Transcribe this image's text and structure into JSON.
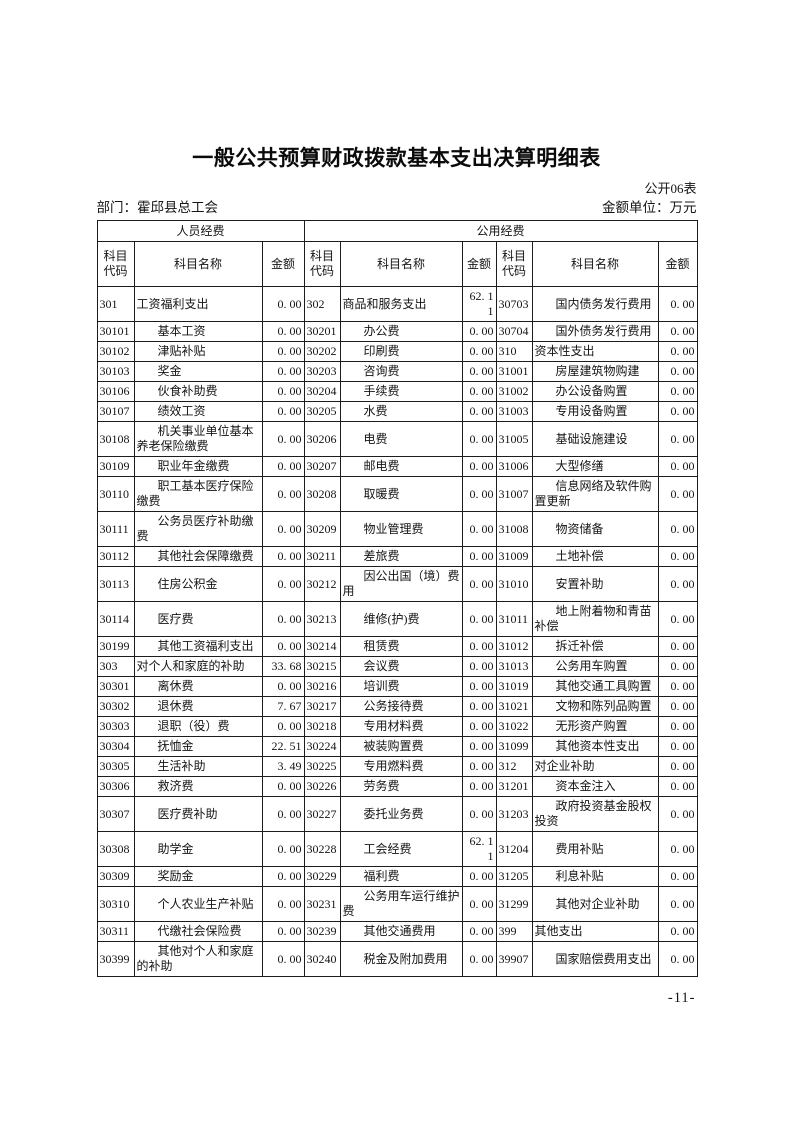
{
  "page": {
    "title": "一般公共预算财政拨款基本支出决算明细表",
    "form_label": "公开06表",
    "department_label": "部门：霍邱县总工会",
    "unit_label": "金额单位：万元",
    "page_number": "-11-"
  },
  "table": {
    "group_headers": [
      "人员经费",
      "公用经费"
    ],
    "column_headers": {
      "code": "科目代码",
      "name": "科目名称",
      "amount": "金额"
    },
    "rows": [
      [
        [
          "301",
          "工资福利支出",
          "0. 00"
        ],
        [
          "302",
          "商品和服务支出",
          "62. 11"
        ],
        [
          "30703",
          "国内债务发行费用",
          "0. 00"
        ]
      ],
      [
        [
          "30101",
          "基本工资",
          "0. 00"
        ],
        [
          "30201",
          "办公费",
          "0. 00"
        ],
        [
          "30704",
          "国外债务发行费用",
          "0. 00"
        ]
      ],
      [
        [
          "30102",
          "津贴补贴",
          "0. 00"
        ],
        [
          "30202",
          "印刷费",
          "0. 00"
        ],
        [
          "310",
          "资本性支出",
          "0. 00"
        ]
      ],
      [
        [
          "30103",
          "奖金",
          "0. 00"
        ],
        [
          "30203",
          "咨询费",
          "0. 00"
        ],
        [
          "31001",
          "房屋建筑物购建",
          "0. 00"
        ]
      ],
      [
        [
          "30106",
          "伙食补助费",
          "0. 00"
        ],
        [
          "30204",
          "手续费",
          "0. 00"
        ],
        [
          "31002",
          "办公设备购置",
          "0. 00"
        ]
      ],
      [
        [
          "30107",
          "绩效工资",
          "0. 00"
        ],
        [
          "30205",
          "水费",
          "0. 00"
        ],
        [
          "31003",
          "专用设备购置",
          "0. 00"
        ]
      ],
      [
        [
          "30108",
          "机关事业单位基本养老保险缴费",
          "0. 00"
        ],
        [
          "30206",
          "电费",
          "0. 00"
        ],
        [
          "31005",
          "基础设施建设",
          "0. 00"
        ]
      ],
      [
        [
          "30109",
          "职业年金缴费",
          "0. 00"
        ],
        [
          "30207",
          "邮电费",
          "0. 00"
        ],
        [
          "31006",
          "大型修缮",
          "0. 00"
        ]
      ],
      [
        [
          "30110",
          "职工基本医疗保险缴费",
          "0. 00"
        ],
        [
          "30208",
          "取暖费",
          "0. 00"
        ],
        [
          "31007",
          "信息网络及软件购置更新",
          "0. 00"
        ]
      ],
      [
        [
          "30111",
          "公务员医疗补助缴费",
          "0. 00"
        ],
        [
          "30209",
          "物业管理费",
          "0. 00"
        ],
        [
          "31008",
          "物资储备",
          "0. 00"
        ]
      ],
      [
        [
          "30112",
          "其他社会保障缴费",
          "0. 00"
        ],
        [
          "30211",
          "差旅费",
          "0. 00"
        ],
        [
          "31009",
          "土地补偿",
          "0. 00"
        ]
      ],
      [
        [
          "30113",
          "住房公积金",
          "0. 00"
        ],
        [
          "30212",
          "因公出国（境）费用",
          "0. 00"
        ],
        [
          "31010",
          "安置补助",
          "0. 00"
        ]
      ],
      [
        [
          "30114",
          "医疗费",
          "0. 00"
        ],
        [
          "30213",
          "维修(护)费",
          "0. 00"
        ],
        [
          "31011",
          "地上附着物和青苗补偿",
          "0. 00"
        ]
      ],
      [
        [
          "30199",
          "其他工资福利支出",
          "0. 00"
        ],
        [
          "30214",
          "租赁费",
          "0. 00"
        ],
        [
          "31012",
          "拆迁补偿",
          "0. 00"
        ]
      ],
      [
        [
          "303",
          "对个人和家庭的补助",
          "33. 68"
        ],
        [
          "30215",
          "会议费",
          "0. 00"
        ],
        [
          "31013",
          "公务用车购置",
          "0. 00"
        ]
      ],
      [
        [
          "30301",
          "离休费",
          "0. 00"
        ],
        [
          "30216",
          "培训费",
          "0. 00"
        ],
        [
          "31019",
          "其他交通工具购置",
          "0. 00"
        ]
      ],
      [
        [
          "30302",
          "退休费",
          "7. 67"
        ],
        [
          "30217",
          "公务接待费",
          "0. 00"
        ],
        [
          "31021",
          "文物和陈列品购置",
          "0. 00"
        ]
      ],
      [
        [
          "30303",
          "退职（役）费",
          "0. 00"
        ],
        [
          "30218",
          "专用材料费",
          "0. 00"
        ],
        [
          "31022",
          "无形资产购置",
          "0. 00"
        ]
      ],
      [
        [
          "30304",
          "抚恤金",
          "22. 51"
        ],
        [
          "30224",
          "被装购置费",
          "0. 00"
        ],
        [
          "31099",
          "其他资本性支出",
          "0. 00"
        ]
      ],
      [
        [
          "30305",
          "生活补助",
          "3. 49"
        ],
        [
          "30225",
          "专用燃料费",
          "0. 00"
        ],
        [
          "312",
          "对企业补助",
          "0. 00"
        ]
      ],
      [
        [
          "30306",
          "救济费",
          "0. 00"
        ],
        [
          "30226",
          "劳务费",
          "0. 00"
        ],
        [
          "31201",
          "资本金注入",
          "0. 00"
        ]
      ],
      [
        [
          "30307",
          "医疗费补助",
          "0. 00"
        ],
        [
          "30227",
          "委托业务费",
          "0. 00"
        ],
        [
          "31203",
          "政府投资基金股权投资",
          "0. 00"
        ]
      ],
      [
        [
          "30308",
          "助学金",
          "0. 00"
        ],
        [
          "30228",
          "工会经费",
          "62. 11"
        ],
        [
          "31204",
          "费用补贴",
          "0. 00"
        ]
      ],
      [
        [
          "30309",
          "奖励金",
          "0. 00"
        ],
        [
          "30229",
          "福利费",
          "0. 00"
        ],
        [
          "31205",
          "利息补贴",
          "0. 00"
        ]
      ],
      [
        [
          "30310",
          "个人农业生产补贴",
          "0. 00"
        ],
        [
          "30231",
          "公务用车运行维护费",
          "0. 00"
        ],
        [
          "31299",
          "其他对企业补助",
          "0. 00"
        ]
      ],
      [
        [
          "30311",
          "代缴社会保险费",
          "0. 00"
        ],
        [
          "30239",
          "其他交通费用",
          "0. 00"
        ],
        [
          "399",
          "其他支出",
          "0. 00"
        ]
      ],
      [
        [
          "30399",
          "其他对个人和家庭的补助",
          "0. 00"
        ],
        [
          "30240",
          "税金及附加费用",
          "0. 00"
        ],
        [
          "39907",
          "国家赔偿费用支出",
          "0. 00"
        ]
      ]
    ]
  }
}
